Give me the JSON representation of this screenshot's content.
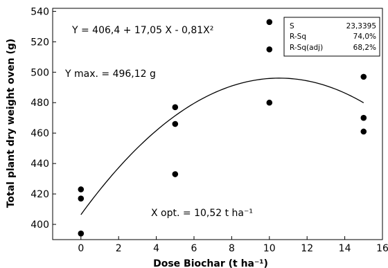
{
  "chart_data": {
    "type": "scatter",
    "xlabel": "Dose Biochar (t ha⁻¹)",
    "ylabel": "Total plant dry weight oven (g)",
    "xlim": [
      -1.5,
      16
    ],
    "ylim": [
      390,
      542
    ],
    "xticks": [
      0,
      2,
      4,
      6,
      8,
      10,
      12,
      14,
      16
    ],
    "yticks": [
      400,
      420,
      440,
      460,
      480,
      500,
      520,
      540
    ],
    "tick_labels_x": [
      "0",
      "2",
      "4",
      "6",
      "8",
      "10",
      "12",
      "14",
      "16"
    ],
    "tick_labels_y": [
      "400",
      "420",
      "440",
      "460",
      "480",
      "500",
      "520",
      "540"
    ],
    "points": [
      {
        "x": 0,
        "y": 423
      },
      {
        "x": 0,
        "y": 417
      },
      {
        "x": 0,
        "y": 394
      },
      {
        "x": 5,
        "y": 477
      },
      {
        "x": 5,
        "y": 466
      },
      {
        "x": 5,
        "y": 433
      },
      {
        "x": 10,
        "y": 533
      },
      {
        "x": 10,
        "y": 515
      },
      {
        "x": 10,
        "y": 480
      },
      {
        "x": 15,
        "y": 497
      },
      {
        "x": 15,
        "y": 470
      },
      {
        "x": 15,
        "y": 461
      }
    ],
    "fit": {
      "intercept": 406.4,
      "linear": 17.05,
      "quadratic": -0.81,
      "x_range": [
        0,
        15
      ]
    },
    "annotations": {
      "equation": "Y =  406,4 + 17,05 X - 0,81X²",
      "ymax": "Y max. = 496,12 g",
      "xopt": "X opt. = 10,52 t ha⁻¹"
    },
    "stats": [
      {
        "label": "S",
        "value": "23,3395"
      },
      {
        "label": "R-Sq",
        "value": "74,0%"
      },
      {
        "label": "R-Sq(adj)",
        "value": "68,2%"
      }
    ],
    "legend_position": "top-right",
    "grid": false,
    "colors": {
      "points": "#000000",
      "line": "#000000",
      "axis": "#000000",
      "background": "#ffffff"
    }
  }
}
